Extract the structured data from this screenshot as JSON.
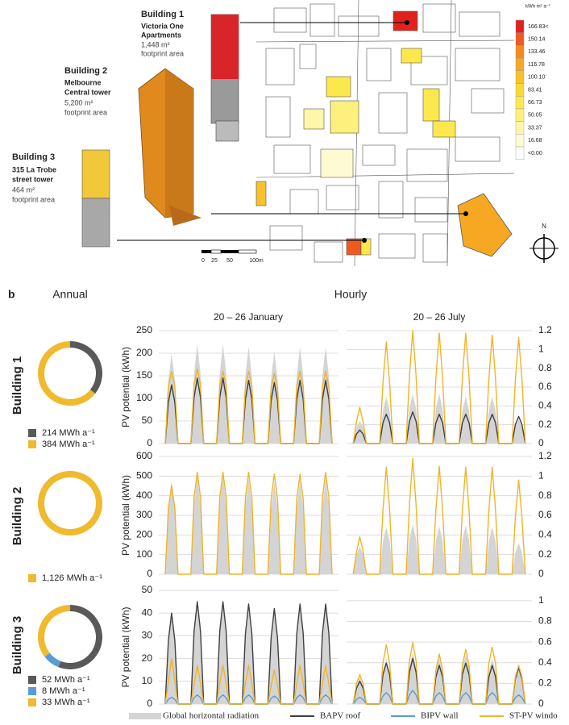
{
  "figure": {
    "panel_label": "b",
    "annual_header": "Annual",
    "hourly_header": "Hourly",
    "period_headers": [
      "20 – 26 January",
      "20 – 26 July"
    ]
  },
  "map": {
    "buildings": [
      {
        "title": "Building 1",
        "name_lines": [
          "Victoria One",
          "Apartments"
        ],
        "area": "1,448 m²",
        "area_note": "footprint area"
      },
      {
        "title": "Building 2",
        "name_lines": [
          "Melbourne",
          "Central tower"
        ],
        "area": "5,200 m²",
        "area_note": "footprint area"
      },
      {
        "title": "Building 3",
        "name_lines": [
          "315 La Trobe",
          "street tower"
        ],
        "area": "464 m²",
        "area_note": "footprint area"
      }
    ],
    "legend_unit": "kWh m² a⁻¹",
    "legend": [
      {
        "label": "166.83<",
        "color": "#e3211c"
      },
      {
        "label": "150.14",
        "color": "#ef5a21"
      },
      {
        "label": "133.46",
        "color": "#f58b1f"
      },
      {
        "label": "116.78",
        "color": "#f7a823"
      },
      {
        "label": "100.10",
        "color": "#f9c22a"
      },
      {
        "label": "83.41",
        "color": "#fbd733"
      },
      {
        "label": "66.73",
        "color": "#fce84c"
      },
      {
        "label": "50.05",
        "color": "#fdf07c"
      },
      {
        "label": "33.37",
        "color": "#fef6a8"
      },
      {
        "label": "16.68",
        "color": "#fefbd2"
      },
      {
        "label": "<0.00",
        "color": "#ffffff"
      }
    ],
    "scale_labels": [
      "0",
      "25",
      "50",
      "100m"
    ],
    "north": "N"
  },
  "chart_data": [
    {
      "type": "donut",
      "title": "Building 1",
      "values": [
        214,
        384
      ],
      "value_labels": [
        "214 MWh a⁻¹",
        "384 MWh a⁻¹"
      ],
      "colors": [
        "#595959",
        "#f0b92e"
      ]
    },
    {
      "type": "line",
      "ylabel": "PV potential (kWh)",
      "xlim": [
        0,
        168
      ],
      "ylim": [
        0,
        250
      ],
      "yticks": [
        0,
        50,
        100,
        150,
        200,
        250
      ],
      "y2lim": [
        0,
        1.2
      ],
      "grid": true,
      "x": [
        6,
        9,
        12,
        15,
        18,
        30,
        33,
        36,
        39,
        42,
        54,
        57,
        60,
        63,
        66,
        78,
        81,
        84,
        87,
        90,
        102,
        105,
        108,
        111,
        114,
        126,
        129,
        132,
        135,
        138,
        150,
        153,
        156,
        159,
        162
      ],
      "series": [
        {
          "name": "Global horizontal radiation",
          "color": "#d4d4d4",
          "fill": true,
          "axis": "y2",
          "values": [
            0,
            0.67,
            0.96,
            0.67,
            0,
            0,
            0.74,
            1.06,
            0.74,
            0,
            0,
            0.74,
            1.06,
            0.74,
            0,
            0,
            0.72,
            1.03,
            0.72,
            0,
            0,
            0.69,
            0.98,
            0.69,
            0,
            0,
            0.72,
            1.03,
            0.72,
            0,
            0,
            0.72,
            1.03,
            0.72,
            0
          ]
        },
        {
          "name": "BAPV roof",
          "color": "#404040",
          "values": [
            0,
            91,
            130,
            91,
            0,
            0,
            102,
            145,
            102,
            0,
            0,
            102,
            145,
            102,
            0,
            0,
            98,
            140,
            98,
            0,
            0,
            95,
            135,
            95,
            0,
            0,
            98,
            140,
            98,
            0,
            0,
            98,
            140,
            98,
            0
          ]
        },
        {
          "name": "ST-PV windo",
          "color": "#f0b429",
          "values": [
            0,
            128,
            160,
            128,
            0,
            0,
            132,
            165,
            132,
            0,
            0,
            128,
            160,
            128,
            0,
            0,
            128,
            160,
            128,
            0,
            0,
            124,
            155,
            124,
            0,
            0,
            128,
            160,
            128,
            0,
            0,
            128,
            160,
            128,
            0
          ]
        }
      ]
    },
    {
      "type": "line",
      "xlim": [
        0,
        168
      ],
      "ylim": [
        0,
        250
      ],
      "y2lim": [
        0,
        1.2
      ],
      "y2ticks": [
        0,
        0.2,
        0.4,
        0.6,
        0.8,
        1,
        1.2
      ],
      "grid": true,
      "x": [
        6,
        9,
        12,
        15,
        18,
        30,
        33,
        36,
        39,
        42,
        54,
        57,
        60,
        63,
        66,
        78,
        81,
        84,
        87,
        90,
        102,
        105,
        108,
        111,
        114,
        126,
        129,
        132,
        135,
        138,
        150,
        153,
        156,
        159,
        162
      ],
      "series": [
        {
          "name": "Global horizontal radiation",
          "color": "#d4d4d4",
          "fill": true,
          "axis": "y2",
          "values": [
            0,
            0.17,
            0.24,
            0.17,
            0,
            0,
            0.35,
            0.5,
            0.35,
            0,
            0,
            0.37,
            0.53,
            0.37,
            0,
            0,
            0.37,
            0.53,
            0.37,
            0,
            0,
            0.35,
            0.5,
            0.35,
            0,
            0,
            0.35,
            0.5,
            0.35,
            0,
            0,
            0.18,
            0.26,
            0.18,
            0
          ]
        },
        {
          "name": "BAPV roof",
          "color": "#404040",
          "values": [
            0,
            21,
            30,
            21,
            0,
            0,
            46,
            65,
            46,
            0,
            0,
            49,
            70,
            49,
            0,
            0,
            46,
            65,
            46,
            0,
            0,
            46,
            65,
            46,
            0,
            0,
            46,
            65,
            46,
            0,
            0,
            42,
            60,
            42,
            0
          ]
        },
        {
          "name": "ST-PV windo",
          "color": "#f0b429",
          "values": [
            0,
            48,
            80,
            48,
            0,
            0,
            135,
            225,
            135,
            0,
            0,
            150,
            250,
            150,
            0,
            0,
            147,
            245,
            147,
            0,
            0,
            147,
            245,
            147,
            0,
            0,
            144,
            240,
            144,
            0,
            0,
            141,
            235,
            141,
            0
          ]
        }
      ]
    },
    {
      "type": "donut",
      "title": "Building 2",
      "values": [
        1126
      ],
      "value_labels": [
        "1,126 MWh a⁻¹"
      ],
      "colors": [
        "#f0b92e"
      ]
    },
    {
      "type": "line",
      "ylabel": "PV potential (kWh)",
      "xlim": [
        0,
        168
      ],
      "ylim": [
        0,
        600
      ],
      "yticks": [
        0,
        100,
        200,
        300,
        400,
        500,
        600
      ],
      "y2lim": [
        0,
        1.2
      ],
      "grid": true,
      "x": [
        6,
        9,
        12,
        15,
        18,
        30,
        33,
        36,
        39,
        42,
        54,
        57,
        60,
        63,
        66,
        78,
        81,
        84,
        87,
        90,
        102,
        105,
        108,
        111,
        114,
        126,
        129,
        132,
        135,
        138,
        150,
        153,
        156,
        159,
        162
      ],
      "series": [
        {
          "name": "Global horizontal radiation",
          "color": "#d4d4d4",
          "fill": true,
          "axis": "y2",
          "values": [
            0,
            0.67,
            0.96,
            0.67,
            0,
            0,
            0.7,
            1.0,
            0.7,
            0,
            0,
            0.7,
            1.0,
            0.7,
            0,
            0,
            0.69,
            0.98,
            0.69,
            0,
            0,
            0.66,
            0.94,
            0.66,
            0,
            0,
            0.67,
            0.96,
            0.67,
            0,
            0,
            0.69,
            0.98,
            0.69,
            0
          ]
        },
        {
          "name": "ST-PV windo",
          "color": "#f0b429",
          "values": [
            0,
            338,
            450,
            338,
            0,
            0,
            390,
            520,
            390,
            0,
            0,
            390,
            520,
            390,
            0,
            0,
            390,
            520,
            390,
            0,
            0,
            383,
            510,
            383,
            0,
            0,
            383,
            510,
            383,
            0,
            0,
            390,
            520,
            390,
            0
          ]
        }
      ]
    },
    {
      "type": "line",
      "xlim": [
        0,
        168
      ],
      "ylim": [
        0,
        600
      ],
      "y2lim": [
        0,
        1.2
      ],
      "y2ticks": [
        0,
        0.2,
        0.4,
        0.6,
        0.8,
        1,
        1.2
      ],
      "grid": true,
      "x": [
        6,
        9,
        12,
        15,
        18,
        30,
        33,
        36,
        39,
        42,
        54,
        57,
        60,
        63,
        66,
        78,
        81,
        84,
        87,
        90,
        102,
        105,
        108,
        111,
        114,
        126,
        129,
        132,
        135,
        138,
        150,
        153,
        156,
        159,
        162
      ],
      "series": [
        {
          "name": "Global horizontal radiation",
          "color": "#d4d4d4",
          "fill": true,
          "axis": "y2",
          "values": [
            0,
            0.2,
            0.28,
            0.2,
            0,
            0,
            0.34,
            0.48,
            0.34,
            0,
            0,
            0.36,
            0.51,
            0.36,
            0,
            0,
            0.34,
            0.49,
            0.34,
            0,
            0,
            0.35,
            0.5,
            0.35,
            0,
            0,
            0.34,
            0.48,
            0.34,
            0,
            0,
            0.22,
            0.32,
            0.22,
            0
          ]
        },
        {
          "name": "ST-PV windo",
          "color": "#f0b429",
          "values": [
            0,
            114,
            190,
            114,
            0,
            0,
            327,
            545,
            327,
            0,
            0,
            354,
            590,
            354,
            0,
            0,
            330,
            550,
            330,
            0,
            0,
            327,
            545,
            327,
            0,
            0,
            327,
            545,
            327,
            0,
            0,
            288,
            480,
            288,
            0
          ]
        }
      ]
    },
    {
      "type": "donut",
      "title": "Building 3",
      "values": [
        52,
        8,
        33
      ],
      "value_labels": [
        "52 MWh a⁻¹",
        "8 MWh a⁻¹",
        "33 MWh a⁻¹"
      ],
      "colors": [
        "#595959",
        "#5b9bd5",
        "#f0b92e"
      ]
    },
    {
      "type": "line",
      "ylabel": "PV potential (kWh)",
      "xlim": [
        0,
        168
      ],
      "ylim": [
        0,
        50
      ],
      "yticks": [
        0,
        10,
        20,
        30,
        40,
        50
      ],
      "y2lim": [
        0,
        1.1
      ],
      "grid": true,
      "x": [
        6,
        9,
        12,
        15,
        18,
        30,
        33,
        36,
        39,
        42,
        54,
        57,
        60,
        63,
        66,
        78,
        81,
        84,
        87,
        90,
        102,
        105,
        108,
        111,
        114,
        126,
        129,
        132,
        135,
        138,
        150,
        153,
        156,
        159,
        162
      ],
      "series": [
        {
          "name": "Global horizontal radiation",
          "color": "#d4d4d4",
          "fill": true,
          "axis": "y2",
          "values": [
            0,
            0.62,
            0.88,
            0.62,
            0,
            0,
            0.68,
            0.97,
            0.68,
            0,
            0,
            0.68,
            0.97,
            0.68,
            0,
            0,
            0.67,
            0.95,
            0.67,
            0,
            0,
            0.62,
            0.88,
            0.62,
            0,
            0,
            0.67,
            0.95,
            0.67,
            0,
            0,
            0.67,
            0.95,
            0.67,
            0
          ]
        },
        {
          "name": "BAPV roof",
          "color": "#404040",
          "values": [
            0,
            28,
            40,
            28,
            0,
            0,
            32,
            45,
            32,
            0,
            0,
            32,
            45,
            32,
            0,
            0,
            31,
            44,
            31,
            0,
            0,
            29,
            42,
            29,
            0,
            0,
            31,
            44,
            31,
            0,
            0,
            31,
            44,
            31,
            0
          ]
        },
        {
          "name": "BIPV wall",
          "color": "#5b9bd5",
          "values": [
            0,
            2,
            3,
            2,
            0,
            0,
            2.8,
            4,
            2.8,
            0,
            0,
            2.8,
            4,
            2.8,
            0,
            0,
            2.8,
            4,
            2.8,
            0,
            0,
            2.5,
            3.5,
            2.5,
            0,
            0,
            2.8,
            4,
            2.8,
            0,
            0,
            2.8,
            4,
            2.8,
            0
          ]
        },
        {
          "name": "ST-PV windo",
          "color": "#f0b429",
          "values": [
            0,
            10,
            20,
            10,
            0,
            0,
            9,
            17,
            9,
            0,
            0,
            9,
            17,
            9,
            0,
            0,
            9,
            17,
            9,
            0,
            0,
            8,
            15,
            8,
            0,
            0,
            9,
            17,
            9,
            0,
            0,
            9,
            17,
            9,
            0
          ]
        }
      ]
    },
    {
      "type": "line",
      "xlim": [
        0,
        168
      ],
      "ylim": [
        0,
        50
      ],
      "y2lim": [
        0,
        1.1
      ],
      "y2ticks": [
        0,
        0.2,
        0.4,
        0.6,
        0.8,
        1
      ],
      "grid": true,
      "x": [
        6,
        9,
        12,
        15,
        18,
        30,
        33,
        36,
        39,
        42,
        54,
        57,
        60,
        63,
        66,
        78,
        81,
        84,
        87,
        90,
        102,
        105,
        108,
        111,
        114,
        126,
        129,
        132,
        135,
        138,
        150,
        153,
        156,
        159,
        162
      ],
      "series": [
        {
          "name": "Global horizontal radiation",
          "color": "#d4d4d4",
          "fill": true,
          "axis": "y2",
          "values": [
            0,
            0.18,
            0.26,
            0.18,
            0,
            0,
            0.31,
            0.44,
            0.31,
            0,
            0,
            0.35,
            0.5,
            0.35,
            0,
            0,
            0.31,
            0.44,
            0.31,
            0,
            0,
            0.34,
            0.48,
            0.34,
            0,
            0,
            0.31,
            0.44,
            0.31,
            0,
            0,
            0.23,
            0.33,
            0.23,
            0
          ]
        },
        {
          "name": "BAPV roof",
          "color": "#404040",
          "values": [
            0,
            7,
            10,
            7,
            0,
            0,
            13,
            18,
            13,
            0,
            0,
            14,
            20,
            14,
            0,
            0,
            12,
            17,
            12,
            0,
            0,
            13,
            18,
            13,
            0,
            0,
            12,
            17,
            12,
            0,
            0,
            11,
            16,
            11,
            0
          ]
        },
        {
          "name": "BIPV wall",
          "color": "#5b9bd5",
          "values": [
            0,
            2,
            3,
            2,
            0,
            0,
            3.5,
            5,
            3.5,
            0,
            0,
            4,
            6,
            4,
            0,
            0,
            3.5,
            5,
            3.5,
            0,
            0,
            3.5,
            5,
            3.5,
            0,
            0,
            3.5,
            5,
            3.5,
            0,
            0,
            2.8,
            4,
            2.8,
            0
          ]
        },
        {
          "name": "ST-PV windo",
          "color": "#f0b429",
          "values": [
            0,
            9,
            13,
            9,
            0,
            0,
            18,
            26,
            18,
            0,
            0,
            19,
            27,
            19,
            0,
            0,
            15,
            22,
            15,
            0,
            0,
            17,
            24,
            17,
            0,
            0,
            18,
            25,
            18,
            0,
            0,
            12,
            17,
            12,
            0
          ]
        }
      ]
    }
  ]
}
